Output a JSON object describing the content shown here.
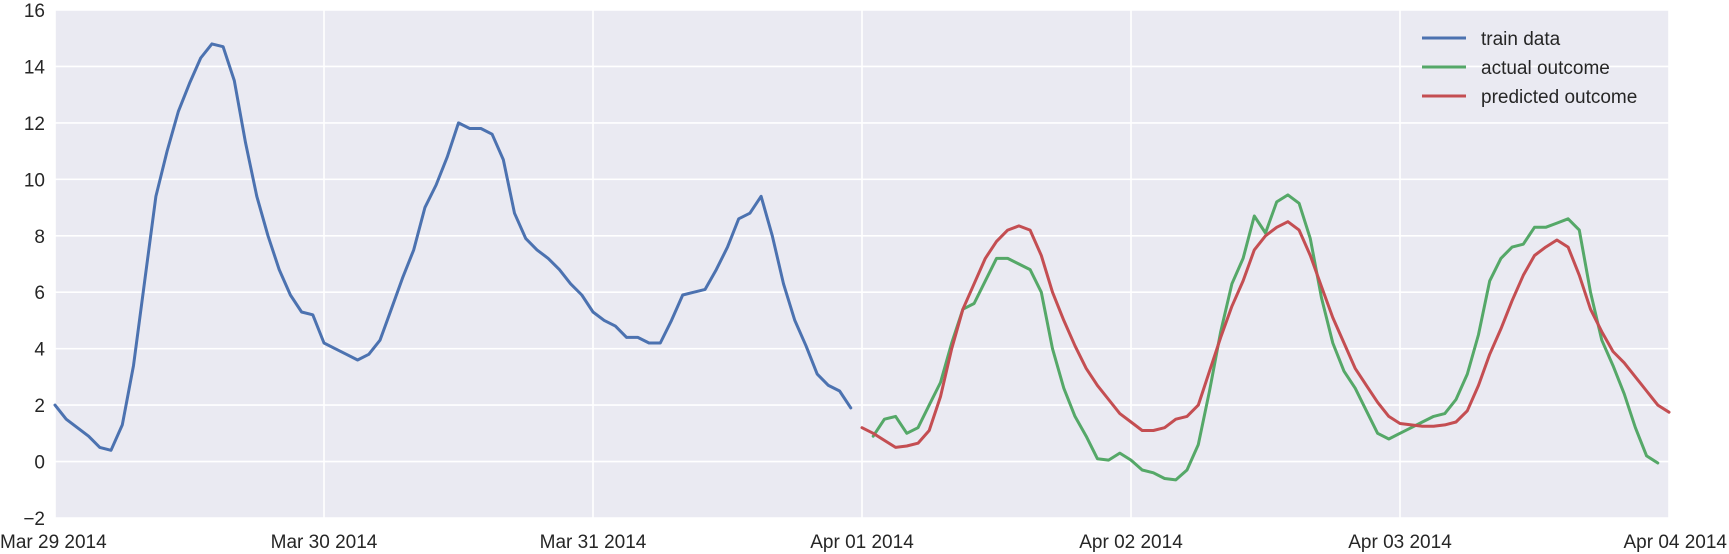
{
  "chart_data": {
    "type": "line",
    "title": "",
    "xlabel": "",
    "ylabel": "",
    "x_unit": "hours since Mar 29 2014 00:00",
    "xlim": [
      0,
      144
    ],
    "ylim": [
      -2,
      16
    ],
    "grid": true,
    "legend_position": "top-right",
    "y_ticks": [
      -2,
      0,
      2,
      4,
      6,
      8,
      10,
      12,
      14,
      16
    ],
    "x_ticks": [
      {
        "value": 0,
        "label": "Mar 29 2014"
      },
      {
        "value": 24,
        "label": "Mar 30 2014"
      },
      {
        "value": 48,
        "label": "Mar 31 2014"
      },
      {
        "value": 72,
        "label": "Apr 01 2014"
      },
      {
        "value": 96,
        "label": "Apr 02 2014"
      },
      {
        "value": 120,
        "label": "Apr 03 2014"
      },
      {
        "value": 144,
        "label": "Apr 04 2014"
      }
    ],
    "series": [
      {
        "name": "train data",
        "color": "#4c72b0",
        "x": [
          0,
          1,
          2,
          3,
          4,
          5,
          6,
          7,
          8,
          9,
          10,
          11,
          12,
          13,
          14,
          15,
          16,
          17,
          18,
          19,
          20,
          21,
          22,
          23,
          24,
          25,
          26,
          27,
          28,
          29,
          30,
          31,
          32,
          33,
          34,
          35,
          36,
          37,
          38,
          39,
          40,
          41,
          42,
          43,
          44,
          45,
          46,
          47,
          48,
          49,
          50,
          51,
          52,
          53,
          54,
          55,
          56,
          57,
          58,
          59,
          60,
          61,
          62,
          63,
          64,
          65,
          66,
          67,
          68,
          69,
          70,
          71
        ],
        "y": [
          2.0,
          1.5,
          1.2,
          0.9,
          0.5,
          0.4,
          1.3,
          3.4,
          6.4,
          9.4,
          11.0,
          12.4,
          13.4,
          14.3,
          14.8,
          14.7,
          13.5,
          11.3,
          9.4,
          8.0,
          6.8,
          5.9,
          5.3,
          5.2,
          4.2,
          4.0,
          3.8,
          3.6,
          3.8,
          4.3,
          5.4,
          6.5,
          7.5,
          9.0,
          9.8,
          10.8,
          12.0,
          11.8,
          11.8,
          11.6,
          10.7,
          8.8,
          7.9,
          7.5,
          7.2,
          6.8,
          6.3,
          5.9,
          5.3,
          5.0,
          4.8,
          4.4,
          4.4,
          4.2,
          4.2,
          5.0,
          5.9,
          6.0,
          6.1,
          6.8,
          7.6,
          8.6,
          8.8,
          9.4,
          8.0,
          6.3,
          5.0,
          4.1,
          3.1,
          2.7,
          2.5,
          1.9
        ]
      },
      {
        "name": "actual outcome",
        "color": "#55a868",
        "x": [
          73,
          74,
          75,
          76,
          77,
          78,
          79,
          80,
          81,
          82,
          83,
          84,
          85,
          86,
          87,
          88,
          89,
          90,
          91,
          92,
          93,
          94,
          95,
          96,
          97,
          98,
          99,
          100,
          101,
          102,
          103,
          104,
          105,
          106,
          107,
          108,
          109,
          110,
          111,
          112,
          113,
          114,
          115,
          116,
          117,
          118,
          119,
          120,
          121,
          122,
          123,
          124,
          125,
          126,
          127,
          128,
          129,
          130,
          131,
          132,
          133,
          134,
          135,
          136,
          137,
          138,
          139,
          140,
          141,
          142,
          143
        ],
        "y": [
          0.9,
          1.5,
          1.6,
          1.0,
          1.2,
          2.0,
          2.8,
          4.2,
          5.4,
          5.6,
          6.4,
          7.2,
          7.2,
          7.0,
          6.8,
          6.0,
          4.0,
          2.6,
          1.6,
          0.9,
          0.1,
          0.05,
          0.3,
          0.05,
          -0.3,
          -0.4,
          -0.6,
          -0.65,
          -0.3,
          0.6,
          2.5,
          4.6,
          6.3,
          7.2,
          8.7,
          8.1,
          9.2,
          9.45,
          9.15,
          7.9,
          5.8,
          4.2,
          3.2,
          2.6,
          1.8,
          1.0,
          0.8,
          1.0,
          1.2,
          1.4,
          1.6,
          1.7,
          2.2,
          3.1,
          4.5,
          6.4,
          7.2,
          7.6,
          7.7,
          8.3,
          8.3,
          8.45,
          8.6,
          8.2,
          6.0,
          4.3,
          3.4,
          2.4,
          1.2,
          0.2,
          -0.05
        ]
      },
      {
        "name": "predicted outcome",
        "color": "#c44e52",
        "x": [
          72,
          73,
          74,
          75,
          76,
          77,
          78,
          79,
          80,
          81,
          82,
          83,
          84,
          85,
          86,
          87,
          88,
          89,
          90,
          91,
          92,
          93,
          94,
          95,
          96,
          97,
          98,
          99,
          100,
          101,
          102,
          103,
          104,
          105,
          106,
          107,
          108,
          109,
          110,
          111,
          112,
          113,
          114,
          115,
          116,
          117,
          118,
          119,
          120,
          121,
          122,
          123,
          124,
          125,
          126,
          127,
          128,
          129,
          130,
          131,
          132,
          133,
          134,
          135,
          136,
          137,
          138,
          139,
          140,
          141,
          142,
          143,
          144
        ],
        "y": [
          1.2,
          1.0,
          0.75,
          0.5,
          0.55,
          0.65,
          1.1,
          2.3,
          4.0,
          5.4,
          6.3,
          7.2,
          7.8,
          8.2,
          8.35,
          8.2,
          7.3,
          6.0,
          5.0,
          4.1,
          3.3,
          2.7,
          2.2,
          1.7,
          1.4,
          1.1,
          1.1,
          1.2,
          1.5,
          1.6,
          2.0,
          3.2,
          4.4,
          5.5,
          6.4,
          7.5,
          8.0,
          8.3,
          8.5,
          8.2,
          7.3,
          6.2,
          5.1,
          4.2,
          3.3,
          2.7,
          2.1,
          1.6,
          1.35,
          1.3,
          1.25,
          1.25,
          1.3,
          1.4,
          1.8,
          2.7,
          3.8,
          4.7,
          5.7,
          6.6,
          7.3,
          7.6,
          7.85,
          7.6,
          6.6,
          5.4,
          4.6,
          3.9,
          3.5,
          3.0,
          2.5,
          2.0,
          1.75
        ]
      }
    ]
  }
}
